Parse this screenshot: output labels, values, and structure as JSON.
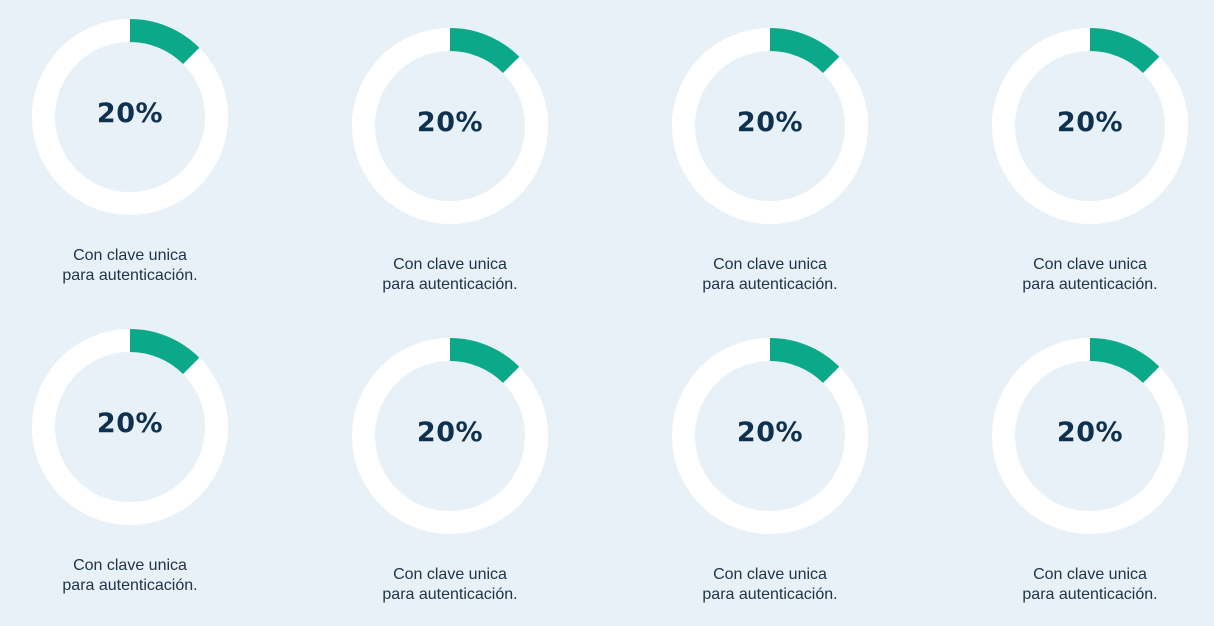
{
  "colors": {
    "background": "#e8f0f8",
    "ring": "#ffffff",
    "accent": "#0ca88a",
    "value_text": "#0e3150",
    "caption_text": "#1d3346"
  },
  "chart_data": [
    {
      "type": "pie",
      "value": 20,
      "label": "20%",
      "caption_line1": "Con clave unica",
      "caption_line2": "para autenticación."
    },
    {
      "type": "pie",
      "value": 20,
      "label": "20%",
      "caption_line1": "Con clave unica",
      "caption_line2": "para autenticación."
    },
    {
      "type": "pie",
      "value": 20,
      "label": "20%",
      "caption_line1": "Con clave unica",
      "caption_line2": "para autenticación."
    },
    {
      "type": "pie",
      "value": 20,
      "label": "20%",
      "caption_line1": "Con clave unica",
      "caption_line2": "para autenticación."
    },
    {
      "type": "pie",
      "value": 20,
      "label": "20%",
      "caption_line1": "Con clave unica",
      "caption_line2": "para autenticación."
    },
    {
      "type": "pie",
      "value": 20,
      "label": "20%",
      "caption_line1": "Con clave unica",
      "caption_line2": "para autenticación."
    },
    {
      "type": "pie",
      "value": 20,
      "label": "20%",
      "caption_line1": "Con clave unica",
      "caption_line2": "para autenticación."
    },
    {
      "type": "pie",
      "value": 20,
      "label": "20%",
      "caption_line1": "Con clave unica",
      "caption_line2": "para autenticación."
    }
  ]
}
